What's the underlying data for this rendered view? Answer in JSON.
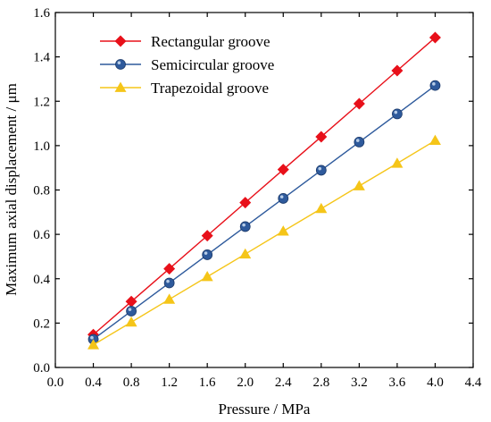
{
  "chart_data": {
    "type": "line",
    "title": "",
    "xlabel": "Pressure / MPa",
    "ylabel": "Maximum axial displacement / μm",
    "xlim": [
      0.0,
      4.4
    ],
    "ylim": [
      0.0,
      1.6
    ],
    "xticks": [
      "0.0",
      "0.4",
      "0.8",
      "1.2",
      "1.6",
      "2.0",
      "2.4",
      "2.8",
      "3.2",
      "3.6",
      "4.0",
      "4.4"
    ],
    "yticks": [
      "0.0",
      "0.2",
      "0.4",
      "0.6",
      "0.8",
      "1.0",
      "1.2",
      "1.4",
      "1.6"
    ],
    "grid": false,
    "legend_position": "top-left",
    "x": [
      0.4,
      0.8,
      1.2,
      1.6,
      2.0,
      2.4,
      2.8,
      3.2,
      3.6,
      4.0
    ],
    "series": [
      {
        "name": "Rectangular groove",
        "marker": "diamond",
        "color": "#e8101a",
        "values": [
          0.148,
          0.297,
          0.445,
          0.594,
          0.743,
          0.892,
          1.04,
          1.189,
          1.338,
          1.487
        ]
      },
      {
        "name": "Semicircular groove",
        "marker": "circle",
        "color": "#2e5a9c",
        "values": [
          0.127,
          0.254,
          0.381,
          0.508,
          0.635,
          0.762,
          0.889,
          1.016,
          1.143,
          1.271
        ]
      },
      {
        "name": "Trapezoidal groove",
        "marker": "triangle",
        "color": "#f5c518",
        "values": [
          0.102,
          0.204,
          0.307,
          0.409,
          0.511,
          0.614,
          0.716,
          0.818,
          0.92,
          1.023
        ]
      }
    ]
  }
}
